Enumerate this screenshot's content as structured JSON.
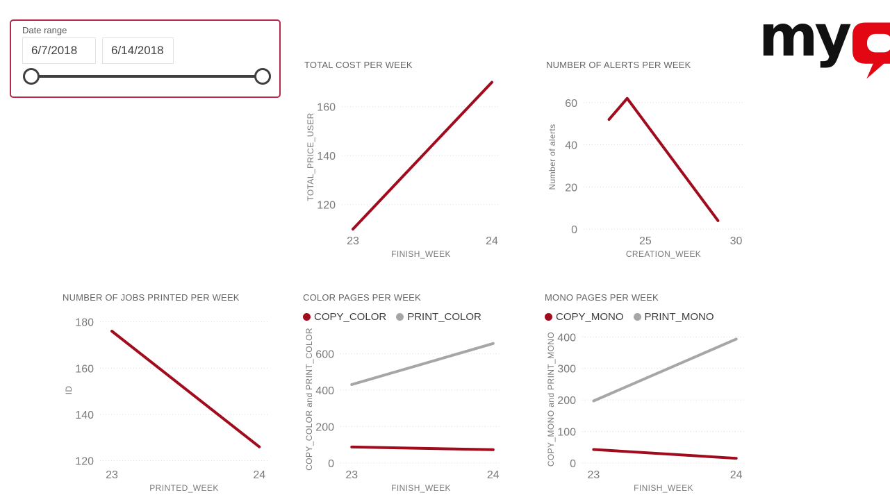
{
  "logo": {
    "prefix": "my",
    "q": "Q",
    "black": "#111111",
    "red": "#e30613"
  },
  "colors": {
    "brand_red": "#A00C1E",
    "series_gray": "#A6A6A6",
    "panel_border": "#B5294B",
    "slider": "#3f3f3f"
  },
  "slicer": {
    "label": "Date range",
    "start_date": "6/7/2018",
    "end_date": "6/14/2018"
  },
  "chart_data": [
    {
      "id": "total-cost-per-week",
      "type": "line",
      "title": "TOTAL COST PER WEEK",
      "xlabel": "FINISH_WEEK",
      "ylabel": "TOTAL_PRICE_USER",
      "xlim": [
        22.92,
        24.06
      ],
      "ylim": [
        110,
        169
      ],
      "x_ticks": [
        23,
        24
      ],
      "y_ticks": [
        120,
        140,
        160
      ],
      "grid": true,
      "legend": false,
      "series": [
        {
          "name": "TOTAL_PRICE_USER",
          "color": "#A00C1E",
          "x": [
            23,
            24
          ],
          "y": [
            110,
            170
          ]
        }
      ]
    },
    {
      "id": "number-of-alerts-per-week",
      "type": "line",
      "title": "NUMBER OF ALERTS PER WEEK",
      "xlabel": "CREATION_WEEK",
      "ylabel": "Number of alerts",
      "xlim": [
        21.6,
        30.4
      ],
      "ylim": [
        0,
        68.5
      ],
      "x_ticks": [
        25,
        30
      ],
      "y_ticks": [
        0,
        20,
        40,
        60
      ],
      "grid": true,
      "legend": false,
      "series": [
        {
          "name": "Number of alerts",
          "color": "#A00C1E",
          "x": [
            23,
            24,
            29
          ],
          "y": [
            52,
            62,
            4
          ]
        }
      ]
    },
    {
      "id": "number-of-jobs-printed-per-week",
      "type": "line",
      "title": "NUMBER OF JOBS PRINTED PER WEEK",
      "xlabel": "PRINTED_WEEK",
      "ylabel": "ID",
      "xlim": [
        22.92,
        24.06
      ],
      "ylim": [
        119,
        182
      ],
      "x_ticks": [
        23,
        24
      ],
      "y_ticks": [
        120,
        140,
        160,
        180
      ],
      "grid": true,
      "legend": false,
      "series": [
        {
          "name": "ID",
          "color": "#A00C1E",
          "x": [
            23,
            24
          ],
          "y": [
            176,
            126
          ]
        }
      ]
    },
    {
      "id": "color-pages-per-week",
      "type": "line",
      "title": "COLOR PAGES PER WEEK",
      "xlabel": "FINISH_WEEK",
      "ylabel": "COPY_COLOR and PRINT_COLOR",
      "xlim": [
        22.92,
        24.06
      ],
      "ylim": [
        0,
        700
      ],
      "x_ticks": [
        23,
        24
      ],
      "y_ticks": [
        0,
        200,
        400,
        600
      ],
      "grid": true,
      "legend": true,
      "legend_position": "top",
      "series": [
        {
          "name": "COPY_COLOR",
          "color": "#A00C1E",
          "x": [
            23,
            24
          ],
          "y": [
            88,
            73
          ]
        },
        {
          "name": "PRINT_COLOR",
          "color": "#A6A6A6",
          "x": [
            23,
            24
          ],
          "y": [
            430,
            655
          ]
        }
      ]
    },
    {
      "id": "mono-pages-per-week",
      "type": "line",
      "title": "MONO PAGES PER WEEK",
      "xlabel": "FINISH_WEEK",
      "ylabel": "COPY_MONO and PRINT_MONO",
      "xlim": [
        22.92,
        24.06
      ],
      "ylim": [
        0,
        405
      ],
      "x_ticks": [
        23,
        24
      ],
      "y_ticks": [
        0,
        100,
        200,
        300,
        400
      ],
      "grid": true,
      "legend": true,
      "legend_position": "top",
      "series": [
        {
          "name": "COPY_MONO",
          "color": "#A00C1E",
          "x": [
            23,
            24
          ],
          "y": [
            43,
            15
          ]
        },
        {
          "name": "PRINT_MONO",
          "color": "#A6A6A6",
          "x": [
            23,
            24
          ],
          "y": [
            197,
            393
          ]
        }
      ]
    }
  ]
}
